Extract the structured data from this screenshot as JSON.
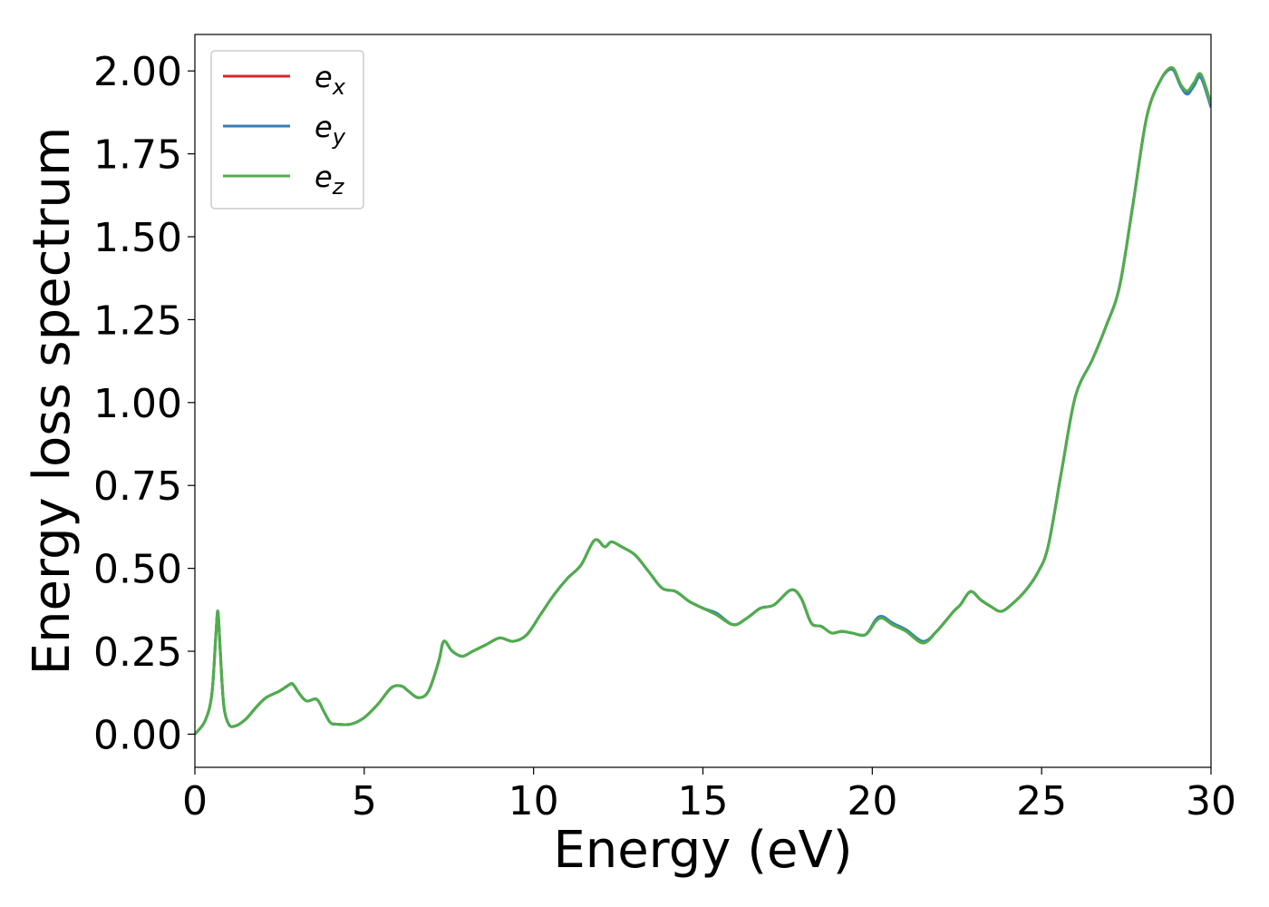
{
  "chart_data": {
    "type": "line",
    "xlabel": "Energy (eV)",
    "ylabel": "Energy loss spectrum",
    "xlim": [
      0,
      30
    ],
    "ylim": [
      -0.1,
      2.11
    ],
    "xticks": [
      0,
      5,
      10,
      15,
      20,
      25,
      30
    ],
    "xtick_labels": [
      "0",
      "5",
      "10",
      "15",
      "20",
      "25",
      "30"
    ],
    "yticks": [
      0.0,
      0.25,
      0.5,
      0.75,
      1.0,
      1.25,
      1.5,
      1.75,
      2.0
    ],
    "ytick_labels": [
      "0.00",
      "0.25",
      "0.50",
      "0.75",
      "1.00",
      "1.25",
      "1.50",
      "1.75",
      "2.00"
    ],
    "grid": false,
    "legend_position": "upper-left",
    "x": [
      0,
      0.3,
      0.5,
      0.62,
      0.68,
      0.75,
      0.85,
      1.0,
      1.2,
      1.5,
      1.8,
      2.1,
      2.5,
      2.8,
      2.9,
      3.1,
      3.3,
      3.6,
      3.8,
      4.0,
      4.2,
      4.6,
      5.0,
      5.4,
      5.8,
      6.1,
      6.3,
      6.6,
      6.9,
      7.2,
      7.35,
      7.6,
      7.9,
      8.2,
      8.6,
      9.0,
      9.4,
      9.8,
      10.2,
      10.6,
      11.0,
      11.4,
      11.8,
      12.1,
      12.3,
      12.6,
      13.0,
      13.4,
      13.8,
      14.2,
      14.6,
      15.0,
      15.4,
      15.9,
      16.3,
      16.7,
      17.1,
      17.6,
      17.9,
      18.2,
      18.5,
      18.8,
      19.1,
      19.4,
      19.8,
      20.1,
      20.3,
      20.6,
      21.0,
      21.5,
      21.9,
      22.4,
      22.6,
      22.9,
      23.2,
      23.5,
      23.8,
      24.1,
      24.5,
      24.9,
      25.2,
      25.6,
      26.0,
      26.5,
      26.9,
      27.3,
      27.7,
      28.1,
      28.5,
      28.85,
      29.1,
      29.3,
      29.5,
      29.7,
      30.0
    ],
    "series": [
      {
        "name": "e_x",
        "color": "#d62728",
        "values": [
          0.0,
          0.04,
          0.12,
          0.3,
          0.37,
          0.25,
          0.09,
          0.03,
          0.025,
          0.045,
          0.08,
          0.11,
          0.13,
          0.15,
          0.15,
          0.12,
          0.1,
          0.105,
          0.07,
          0.035,
          0.03,
          0.03,
          0.05,
          0.09,
          0.14,
          0.145,
          0.13,
          0.11,
          0.13,
          0.22,
          0.28,
          0.25,
          0.235,
          0.25,
          0.27,
          0.29,
          0.28,
          0.3,
          0.36,
          0.42,
          0.47,
          0.51,
          0.585,
          0.565,
          0.58,
          0.565,
          0.54,
          0.49,
          0.44,
          0.43,
          0.4,
          0.38,
          0.36,
          0.33,
          0.35,
          0.38,
          0.39,
          0.435,
          0.41,
          0.335,
          0.325,
          0.305,
          0.31,
          0.305,
          0.3,
          0.34,
          0.35,
          0.33,
          0.31,
          0.275,
          0.31,
          0.37,
          0.39,
          0.43,
          0.405,
          0.385,
          0.37,
          0.39,
          0.43,
          0.49,
          0.57,
          0.8,
          1.02,
          1.13,
          1.23,
          1.35,
          1.6,
          1.86,
          1.97,
          2.01,
          1.96,
          1.935,
          1.96,
          1.99,
          1.9
        ]
      },
      {
        "name": "e_y",
        "color": "#377eb8",
        "values": [
          0.0,
          0.04,
          0.12,
          0.3,
          0.37,
          0.25,
          0.09,
          0.03,
          0.025,
          0.045,
          0.08,
          0.11,
          0.13,
          0.15,
          0.15,
          0.12,
          0.1,
          0.105,
          0.07,
          0.035,
          0.03,
          0.03,
          0.05,
          0.09,
          0.14,
          0.145,
          0.13,
          0.11,
          0.13,
          0.22,
          0.28,
          0.25,
          0.235,
          0.25,
          0.27,
          0.29,
          0.28,
          0.3,
          0.36,
          0.42,
          0.47,
          0.51,
          0.585,
          0.565,
          0.58,
          0.565,
          0.54,
          0.49,
          0.44,
          0.43,
          0.4,
          0.38,
          0.365,
          0.33,
          0.35,
          0.38,
          0.39,
          0.435,
          0.41,
          0.335,
          0.325,
          0.305,
          0.31,
          0.305,
          0.3,
          0.345,
          0.355,
          0.335,
          0.315,
          0.28,
          0.31,
          0.37,
          0.39,
          0.43,
          0.405,
          0.385,
          0.37,
          0.39,
          0.43,
          0.49,
          0.57,
          0.8,
          1.02,
          1.13,
          1.23,
          1.35,
          1.6,
          1.86,
          1.97,
          2.005,
          1.955,
          1.93,
          1.955,
          1.98,
          1.89
        ]
      },
      {
        "name": "e_z",
        "color": "#4daf4a",
        "values": [
          0.0,
          0.04,
          0.12,
          0.3,
          0.37,
          0.25,
          0.09,
          0.03,
          0.025,
          0.045,
          0.08,
          0.11,
          0.13,
          0.15,
          0.15,
          0.12,
          0.1,
          0.105,
          0.07,
          0.035,
          0.03,
          0.03,
          0.05,
          0.09,
          0.14,
          0.145,
          0.13,
          0.11,
          0.13,
          0.22,
          0.28,
          0.25,
          0.235,
          0.25,
          0.27,
          0.29,
          0.28,
          0.3,
          0.36,
          0.42,
          0.47,
          0.51,
          0.585,
          0.565,
          0.58,
          0.565,
          0.54,
          0.49,
          0.44,
          0.43,
          0.4,
          0.38,
          0.36,
          0.33,
          0.35,
          0.38,
          0.39,
          0.435,
          0.41,
          0.335,
          0.325,
          0.305,
          0.31,
          0.305,
          0.3,
          0.34,
          0.35,
          0.33,
          0.31,
          0.275,
          0.31,
          0.37,
          0.39,
          0.43,
          0.405,
          0.385,
          0.37,
          0.39,
          0.43,
          0.49,
          0.57,
          0.8,
          1.02,
          1.13,
          1.23,
          1.35,
          1.6,
          1.86,
          1.97,
          2.01,
          1.96,
          1.94,
          1.965,
          1.99,
          1.9
        ]
      }
    ],
    "legend": [
      {
        "base": "e",
        "sub": "x"
      },
      {
        "base": "e",
        "sub": "y"
      },
      {
        "base": "e",
        "sub": "z"
      }
    ]
  }
}
